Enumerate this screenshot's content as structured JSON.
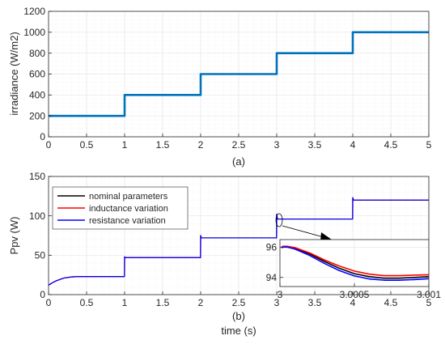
{
  "colors": {
    "irradiance": "#0072BD",
    "nominal": "#000000",
    "inductance": "#FF0000",
    "resistance": "#0000FF",
    "grid": "#e6e6e6",
    "axis": "#262626"
  },
  "chart_data": [
    {
      "id": "a",
      "type": "line",
      "caption": "(a)",
      "xlabel": "",
      "ylabel": "irradiance (W/m2)",
      "xlim": [
        0,
        5
      ],
      "ylim": [
        0,
        1200
      ],
      "xticks": [
        0,
        0.5,
        1,
        1.5,
        2,
        2.5,
        3,
        3.5,
        4,
        4.5,
        5
      ],
      "xtick_labels": [
        "0",
        "0.5",
        "1",
        "1.5",
        "2",
        "2.5",
        "3",
        "3.5",
        "4",
        "4.5",
        "5"
      ],
      "yticks": [
        0,
        200,
        400,
        600,
        800,
        1000,
        1200
      ],
      "ytick_labels": [
        "0",
        "200",
        "400",
        "600",
        "800",
        "1000",
        "1200"
      ],
      "grid": true,
      "series": [
        {
          "x": [
            0,
            1,
            1,
            2,
            2,
            3,
            3,
            4,
            4,
            5
          ],
          "y": [
            200,
            200,
            400,
            400,
            600,
            600,
            800,
            800,
            1000,
            1000
          ]
        }
      ]
    },
    {
      "id": "b",
      "type": "line",
      "caption": "(b)",
      "xlabel": "time (s)",
      "ylabel": "Ppv (W)",
      "xlim": [
        0,
        5
      ],
      "ylim": [
        0,
        150
      ],
      "xticks": [
        0,
        0.5,
        1,
        1.5,
        2,
        2.5,
        3,
        3.5,
        4,
        4.5,
        5
      ],
      "xtick_labels": [
        "0",
        "0.5",
        "1",
        "1.5",
        "2",
        "2.5",
        "3",
        "3.5",
        "4",
        "4.5",
        "5"
      ],
      "yticks": [
        0,
        50,
        100,
        150
      ],
      "ytick_labels": [
        "0",
        "50",
        "100",
        "150"
      ],
      "grid": true,
      "legend_position": "top-left",
      "series": [
        {
          "name": "nominal parameters",
          "x": [
            0,
            0.05,
            0.1,
            0.2,
            0.3,
            0.4,
            0.6,
            0.8,
            0.999,
            1,
            1.01,
            1.02,
            1.999,
            2,
            2.01,
            2.02,
            2.999,
            3,
            3.01,
            3.02,
            3.999,
            4,
            4.01,
            4.02,
            5
          ],
          "y": [
            12,
            15,
            17.5,
            21,
            22.5,
            23,
            23,
            23,
            23,
            48,
            47,
            47,
            47,
            75,
            72,
            72,
            72,
            102,
            96,
            96,
            96,
            123,
            120,
            120,
            120
          ]
        },
        {
          "name": "inductance variation",
          "x": [
            0,
            0.05,
            0.1,
            0.2,
            0.3,
            0.4,
            0.6,
            0.8,
            0.999,
            1,
            1.01,
            1.02,
            1.999,
            2,
            2.01,
            2.02,
            2.999,
            3,
            3.01,
            3.02,
            3.999,
            4,
            4.01,
            4.02,
            5
          ],
          "y": [
            12,
            15,
            17.5,
            21,
            22.5,
            23,
            23,
            23,
            23,
            48,
            47,
            47,
            47,
            75,
            72,
            72,
            72,
            102,
            96,
            96,
            96,
            123,
            120,
            120,
            120
          ]
        },
        {
          "name": "resistance variation",
          "x": [
            0,
            0.05,
            0.1,
            0.2,
            0.3,
            0.4,
            0.6,
            0.8,
            0.999,
            1,
            1.01,
            1.02,
            1.999,
            2,
            2.01,
            2.02,
            2.999,
            3,
            3.01,
            3.02,
            3.999,
            4,
            4.01,
            4.02,
            5
          ],
          "y": [
            12,
            15,
            17.5,
            21,
            22.5,
            23,
            23,
            23,
            23,
            48,
            47,
            47,
            47,
            75,
            72,
            72,
            72,
            102,
            96,
            96,
            96,
            123,
            120,
            120,
            120
          ]
        }
      ],
      "inset": {
        "xlim": [
          3,
          3.001
        ],
        "ylim": [
          93.4,
          96.5
        ],
        "xtick_labels": [
          "3",
          "3.0005",
          "3.001"
        ],
        "xticks": [
          3,
          3.0005,
          3.001
        ],
        "yticks": [
          94,
          96
        ],
        "ytick_labels": [
          "94",
          "96"
        ],
        "series": [
          {
            "name": "nominal parameters",
            "x": [
              3.00001,
              3.00002,
              3.00005,
              3.0001,
              3.0002,
              3.0003,
              3.0004,
              3.0005,
              3.0006,
              3.0007,
              3.0008,
              3.0009,
              3.001
            ],
            "y": [
              96.0,
              96.05,
              96.05,
              95.95,
              95.55,
              95.05,
              94.6,
              94.25,
              94.05,
              93.95,
              93.95,
              94.0,
              94.05
            ]
          },
          {
            "name": "inductance variation",
            "x": [
              3.00001,
              3.00002,
              3.00005,
              3.0001,
              3.0002,
              3.0003,
              3.0004,
              3.0005,
              3.0006,
              3.0007,
              3.0008,
              3.0009,
              3.001
            ],
            "y": [
              96.0,
              96.05,
              96.05,
              95.97,
              95.62,
              95.15,
              94.75,
              94.42,
              94.22,
              94.12,
              94.12,
              94.15,
              94.18
            ]
          },
          {
            "name": "resistance variation",
            "x": [
              3.00001,
              3.00002,
              3.00005,
              3.0001,
              3.0002,
              3.0003,
              3.0004,
              3.0005,
              3.0006,
              3.0007,
              3.0008,
              3.0009,
              3.001
            ],
            "y": [
              95.95,
              96.0,
              96.0,
              95.88,
              95.45,
              94.92,
              94.45,
              94.1,
              93.9,
              93.82,
              93.82,
              93.86,
              93.92
            ]
          }
        ]
      }
    }
  ]
}
